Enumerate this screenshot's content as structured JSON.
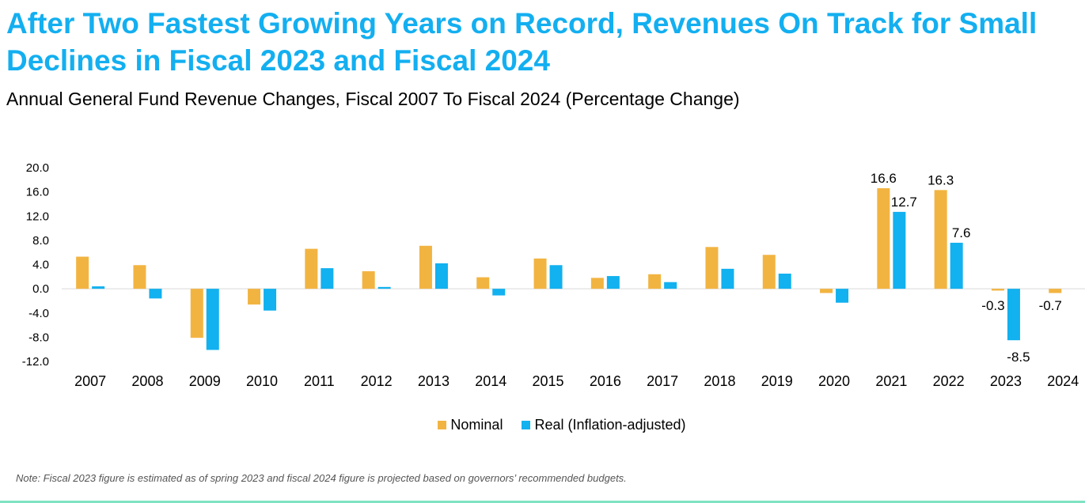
{
  "chart_data": {
    "type": "bar",
    "title": "After Two Fastest Growing Years on Record, Revenues On Track for Small Declines in Fiscal 2023 and Fiscal 2024",
    "subtitle": "Annual General Fund Revenue Changes, Fiscal 2007 To Fiscal 2024 (Percentage Change)",
    "categories": [
      "2007",
      "2008",
      "2009",
      "2010",
      "2011",
      "2012",
      "2013",
      "2014",
      "2015",
      "2016",
      "2017",
      "2018",
      "2019",
      "2020",
      "2021",
      "2022",
      "2023",
      "2024"
    ],
    "series": [
      {
        "name": "Nominal",
        "color": "#f2b441",
        "values": [
          5.3,
          3.9,
          -8.1,
          -2.6,
          6.6,
          2.9,
          7.1,
          1.9,
          5.0,
          1.8,
          2.4,
          6.9,
          5.6,
          -0.7,
          16.6,
          16.3,
          -0.3,
          -0.7
        ]
      },
      {
        "name": "Real (Inflation-adjusted)",
        "color": "#12b1ef",
        "values": [
          0.4,
          -1.6,
          -10.1,
          -3.6,
          3.4,
          0.3,
          4.2,
          -1.1,
          3.9,
          2.1,
          1.1,
          3.3,
          2.5,
          -2.3,
          12.7,
          7.6,
          -8.5,
          null
        ]
      }
    ],
    "data_labels": [
      {
        "series": 0,
        "index": 14,
        "text": "16.6"
      },
      {
        "series": 1,
        "index": 14,
        "text": "12.7"
      },
      {
        "series": 0,
        "index": 15,
        "text": "16.3"
      },
      {
        "series": 1,
        "index": 15,
        "text": "7.6"
      },
      {
        "series": 0,
        "index": 16,
        "text": "-0.3"
      },
      {
        "series": 1,
        "index": 16,
        "text": "-8.5"
      },
      {
        "series": 0,
        "index": 17,
        "text": "-0.7"
      }
    ],
    "yticks": [
      "20.0",
      "16.0",
      "12.0",
      "8.0",
      "4.0",
      "0.0",
      "-4.0",
      "-8.0",
      "-12.0"
    ],
    "ylim": [
      -12,
      20
    ],
    "grid": false,
    "legend_position": "bottom"
  },
  "note": "Note: Fiscal 2023 figure is estimated as of spring 2023 and fiscal 2024 figure is projected based on governors’ recommended budgets."
}
